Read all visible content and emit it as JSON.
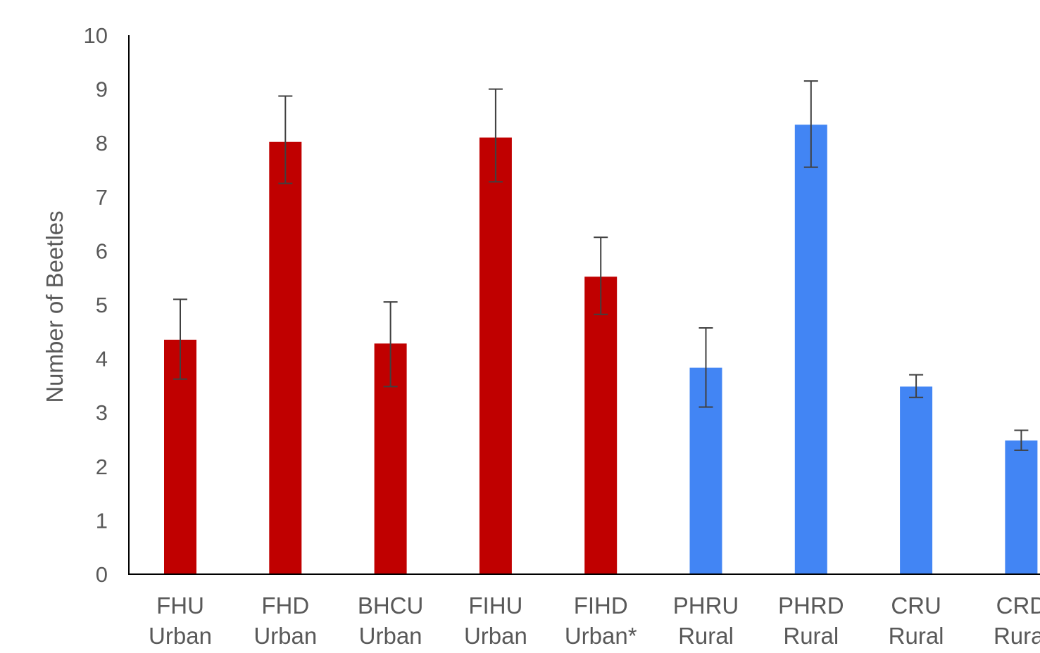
{
  "chart_data": {
    "type": "bar",
    "ylabel": "Number of Beetles",
    "xlabel": "",
    "title": "",
    "ylim": [
      0,
      10
    ],
    "yticks": [
      0,
      1,
      2,
      3,
      4,
      5,
      6,
      7,
      8,
      9,
      10
    ],
    "grid": false,
    "legend": "none",
    "categories": [
      {
        "code": "FHU",
        "group": "Urban"
      },
      {
        "code": "FHD",
        "group": "Urban"
      },
      {
        "code": "BHCU",
        "group": "Urban"
      },
      {
        "code": "FIHU",
        "group": "Urban"
      },
      {
        "code": "FIHD",
        "group": "Urban*"
      },
      {
        "code": "PHRU",
        "group": "Rural"
      },
      {
        "code": "PHRD",
        "group": "Rural"
      },
      {
        "code": "CRU",
        "group": "Rural"
      },
      {
        "code": "CRD",
        "group": "Rural"
      }
    ],
    "values": [
      4.35,
      8.02,
      4.28,
      8.1,
      5.52,
      3.83,
      8.34,
      3.48,
      2.48
    ],
    "error_low": [
      3.62,
      7.25,
      3.48,
      7.28,
      4.82,
      3.1,
      7.55,
      3.28,
      2.3
    ],
    "error_high": [
      5.1,
      8.87,
      5.05,
      9.0,
      6.25,
      4.57,
      9.15,
      3.7,
      2.67
    ],
    "colors": {
      "Urban": "#c00000",
      "Rural": "#4285f4",
      "error_bar": "#404040",
      "axis": "#000000",
      "text": "#595959"
    }
  }
}
